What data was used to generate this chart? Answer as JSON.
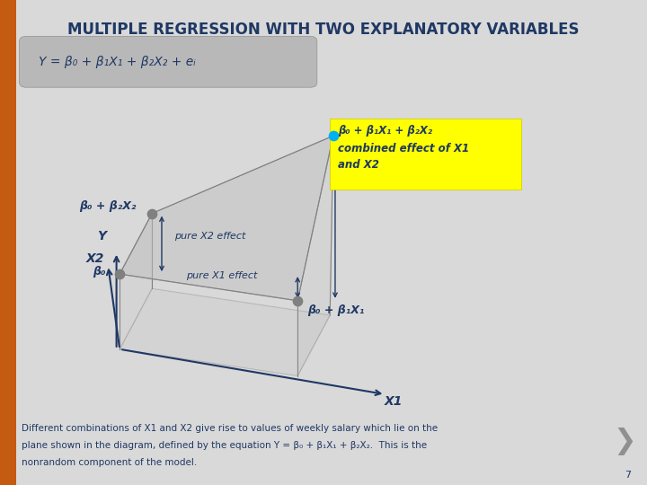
{
  "title": "MULTIPLE REGRESSION WITH TWO EXPLANATORY VARIABLES",
  "title_color": "#1F3864",
  "bg_color": "#D9D9D9",
  "left_bar_color": "#C55A11",
  "formula_text": "Y = β₀ + β₁X₁ + β₂X₂ + eᵢ",
  "yellow_box_bg": "#FFFF00",
  "axis_color": "#1F3864",
  "plane_fill": "#C0C0C0",
  "plane_alpha": 0.5,
  "grid_line_color": "#808080",
  "dot_color_gray": "#808080",
  "dot_color_cyan": "#00B0F0",
  "arrow_color": "#1F3864",
  "line1": "Different combinations of X1 and X2 give rise to values of weekly salary which lie on the",
  "line2": "plane shown in the diagram, defined by the equation Y = β₀ + β₁X₁ + β₂X₂.  This is the",
  "line3": "nonrandom component of the model.",
  "page_num": "7",
  "label_b0b2x2": "β₀ + β₂X₂",
  "label_b0": "β₀",
  "label_b0b1x1": "β₀ + β₁X₁",
  "label_b0b1x1b2x2": "β₀ + β₁X₁ + β₂X₂",
  "label_combined_1": "combined effect of X1",
  "label_combined_2": "and X2",
  "label_pureX2": "pure X2 effect",
  "label_pureX1": "pure X1 effect",
  "label_X1": "X1",
  "label_X2": "X2",
  "label_Y": "Y"
}
